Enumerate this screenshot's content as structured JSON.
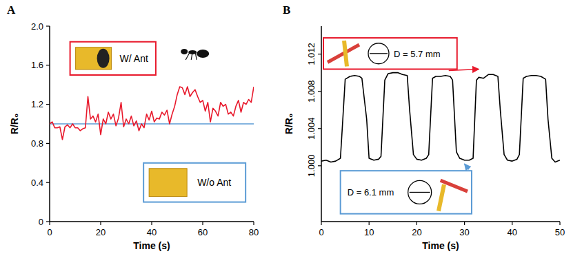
{
  "chart_data": [
    {
      "type": "line",
      "panel_label": "A",
      "x_label": "Time (s)",
      "y_label": "R/R₀",
      "xlim": [
        0,
        80
      ],
      "xticks": [
        0,
        20,
        40,
        60,
        80
      ],
      "ylim": [
        0,
        2
      ],
      "yticks": [
        0,
        0.4,
        0.8,
        1.2,
        1.6,
        {
          "value": 2,
          "label": "2.0"
        }
      ],
      "series": [
        {
          "color": "#e8192c",
          "x": [
            0,
            1,
            2,
            3,
            4,
            5,
            6,
            7,
            8,
            9,
            10,
            11,
            12,
            13,
            14,
            15,
            16,
            17,
            18,
            19,
            20,
            21,
            22,
            23,
            24,
            25,
            26,
            27,
            28,
            29,
            30,
            31,
            32,
            33,
            34,
            35,
            36,
            37,
            38,
            39,
            40,
            41,
            42,
            43,
            44,
            45,
            46,
            47,
            48,
            49,
            50,
            51,
            52,
            53,
            54,
            55,
            56,
            57,
            58,
            59,
            60,
            61,
            62,
            63,
            64,
            65,
            66,
            67,
            68,
            69,
            70,
            71,
            72,
            73,
            74,
            75,
            76,
            77,
            78,
            79,
            80
          ],
          "values": [
            1.0,
            1.02,
            0.96,
            0.96,
            0.97,
            0.84,
            0.97,
            0.99,
            0.96,
            1.0,
            0.96,
            0.96,
            0.93,
            0.95,
            0.96,
            1.28,
            1.05,
            1.08,
            1.02,
            1.1,
            0.89,
            1.05,
            1.0,
            1.12,
            1.05,
            1.1,
            0.98,
            1.06,
            1.22,
            0.97,
            1.05,
            1.0,
            1.08,
            0.98,
            1.03,
            0.93,
            1.0,
            0.96,
            1.1,
            1.04,
            1.13,
            1.02,
            1.06,
            1.05,
            1.12,
            1.09,
            1.14,
            1.0,
            1.1,
            1.18,
            1.3,
            1.38,
            1.37,
            1.3,
            1.38,
            1.28,
            1.32,
            1.35,
            1.28,
            1.22,
            1.24,
            1.13,
            1.22,
            1.02,
            1.16,
            1.13,
            1.08,
            1.22,
            1.18,
            1.2,
            1.1,
            1.12,
            1.08,
            1.18,
            1.24,
            1.12,
            1.22,
            1.2,
            1.25,
            1.22,
            1.38
          ]
        },
        {
          "color": "#5b9bd5",
          "x": [
            0,
            80
          ],
          "values": [
            1,
            1
          ]
        }
      ],
      "annotations": [
        {
          "text": "W/ Ant",
          "color": "#e8192c"
        },
        {
          "text": "W/o Ant",
          "color": "#5b9bd5"
        }
      ]
    },
    {
      "type": "line",
      "panel_label": "B",
      "x_label": "Time (s)",
      "y_label": "R/R₀",
      "xlim": [
        0,
        50
      ],
      "xticks": [
        0,
        10,
        20,
        30,
        40,
        50
      ],
      "ylim": [
        0.994,
        1.015
      ],
      "yticks": [
        {
          "value": 1,
          "label": "1.000"
        },
        {
          "value": 1.004,
          "label": "1.004"
        },
        {
          "value": 1.008,
          "label": "1.008"
        },
        {
          "value": 1.012,
          "label": "1.012"
        }
      ],
      "series": [
        {
          "color": "#000000",
          "x": [
            0,
            1,
            2,
            3,
            4,
            4.5,
            5,
            6,
            7,
            8,
            8.5,
            9.5,
            10,
            11,
            12,
            12.5,
            13.3,
            14,
            15,
            16,
            17,
            18,
            18.5,
            19.3,
            20,
            21,
            22,
            22.5,
            23.3,
            24,
            25,
            26,
            27,
            27.5,
            28.3,
            29,
            30,
            31,
            31.8,
            32.5,
            33,
            34,
            35,
            36,
            37,
            37.5,
            38.3,
            39,
            40,
            41,
            41.5,
            42.3,
            43,
            44,
            45,
            46,
            47,
            47.5,
            48.3,
            49,
            50
          ],
          "values": [
            1.0005,
            1.0006,
            1.0004,
            1.0005,
            1.0008,
            1.005,
            1.0093,
            1.0096,
            1.0097,
            1.0096,
            1.0094,
            1.005,
            1.0008,
            1.0006,
            1.0007,
            1.001,
            1.0092,
            1.0099,
            1.01,
            1.01,
            1.0098,
            1.0097,
            1.006,
            1.0012,
            1.0007,
            1.0006,
            1.0008,
            1.0012,
            1.0094,
            1.0096,
            1.0096,
            1.0097,
            1.0096,
            1.0092,
            1.0015,
            1.0008,
            1.0006,
            1.0006,
            1.0008,
            1.0092,
            1.0095,
            1.0094,
            1.0098,
            1.0098,
            1.0096,
            1.006,
            1.0012,
            1.0006,
            1.0005,
            1.0007,
            1.0012,
            1.0094,
            1.0096,
            1.0097,
            1.0097,
            1.0096,
            1.0093,
            1.005,
            1.0008,
            1.0004,
            1.0006
          ]
        }
      ],
      "annotations": [
        {
          "text": "D = 5.7 mm",
          "color": "#e8192c"
        },
        {
          "text": "D = 6.1 mm",
          "color": "#5b9bd5"
        }
      ]
    }
  ]
}
